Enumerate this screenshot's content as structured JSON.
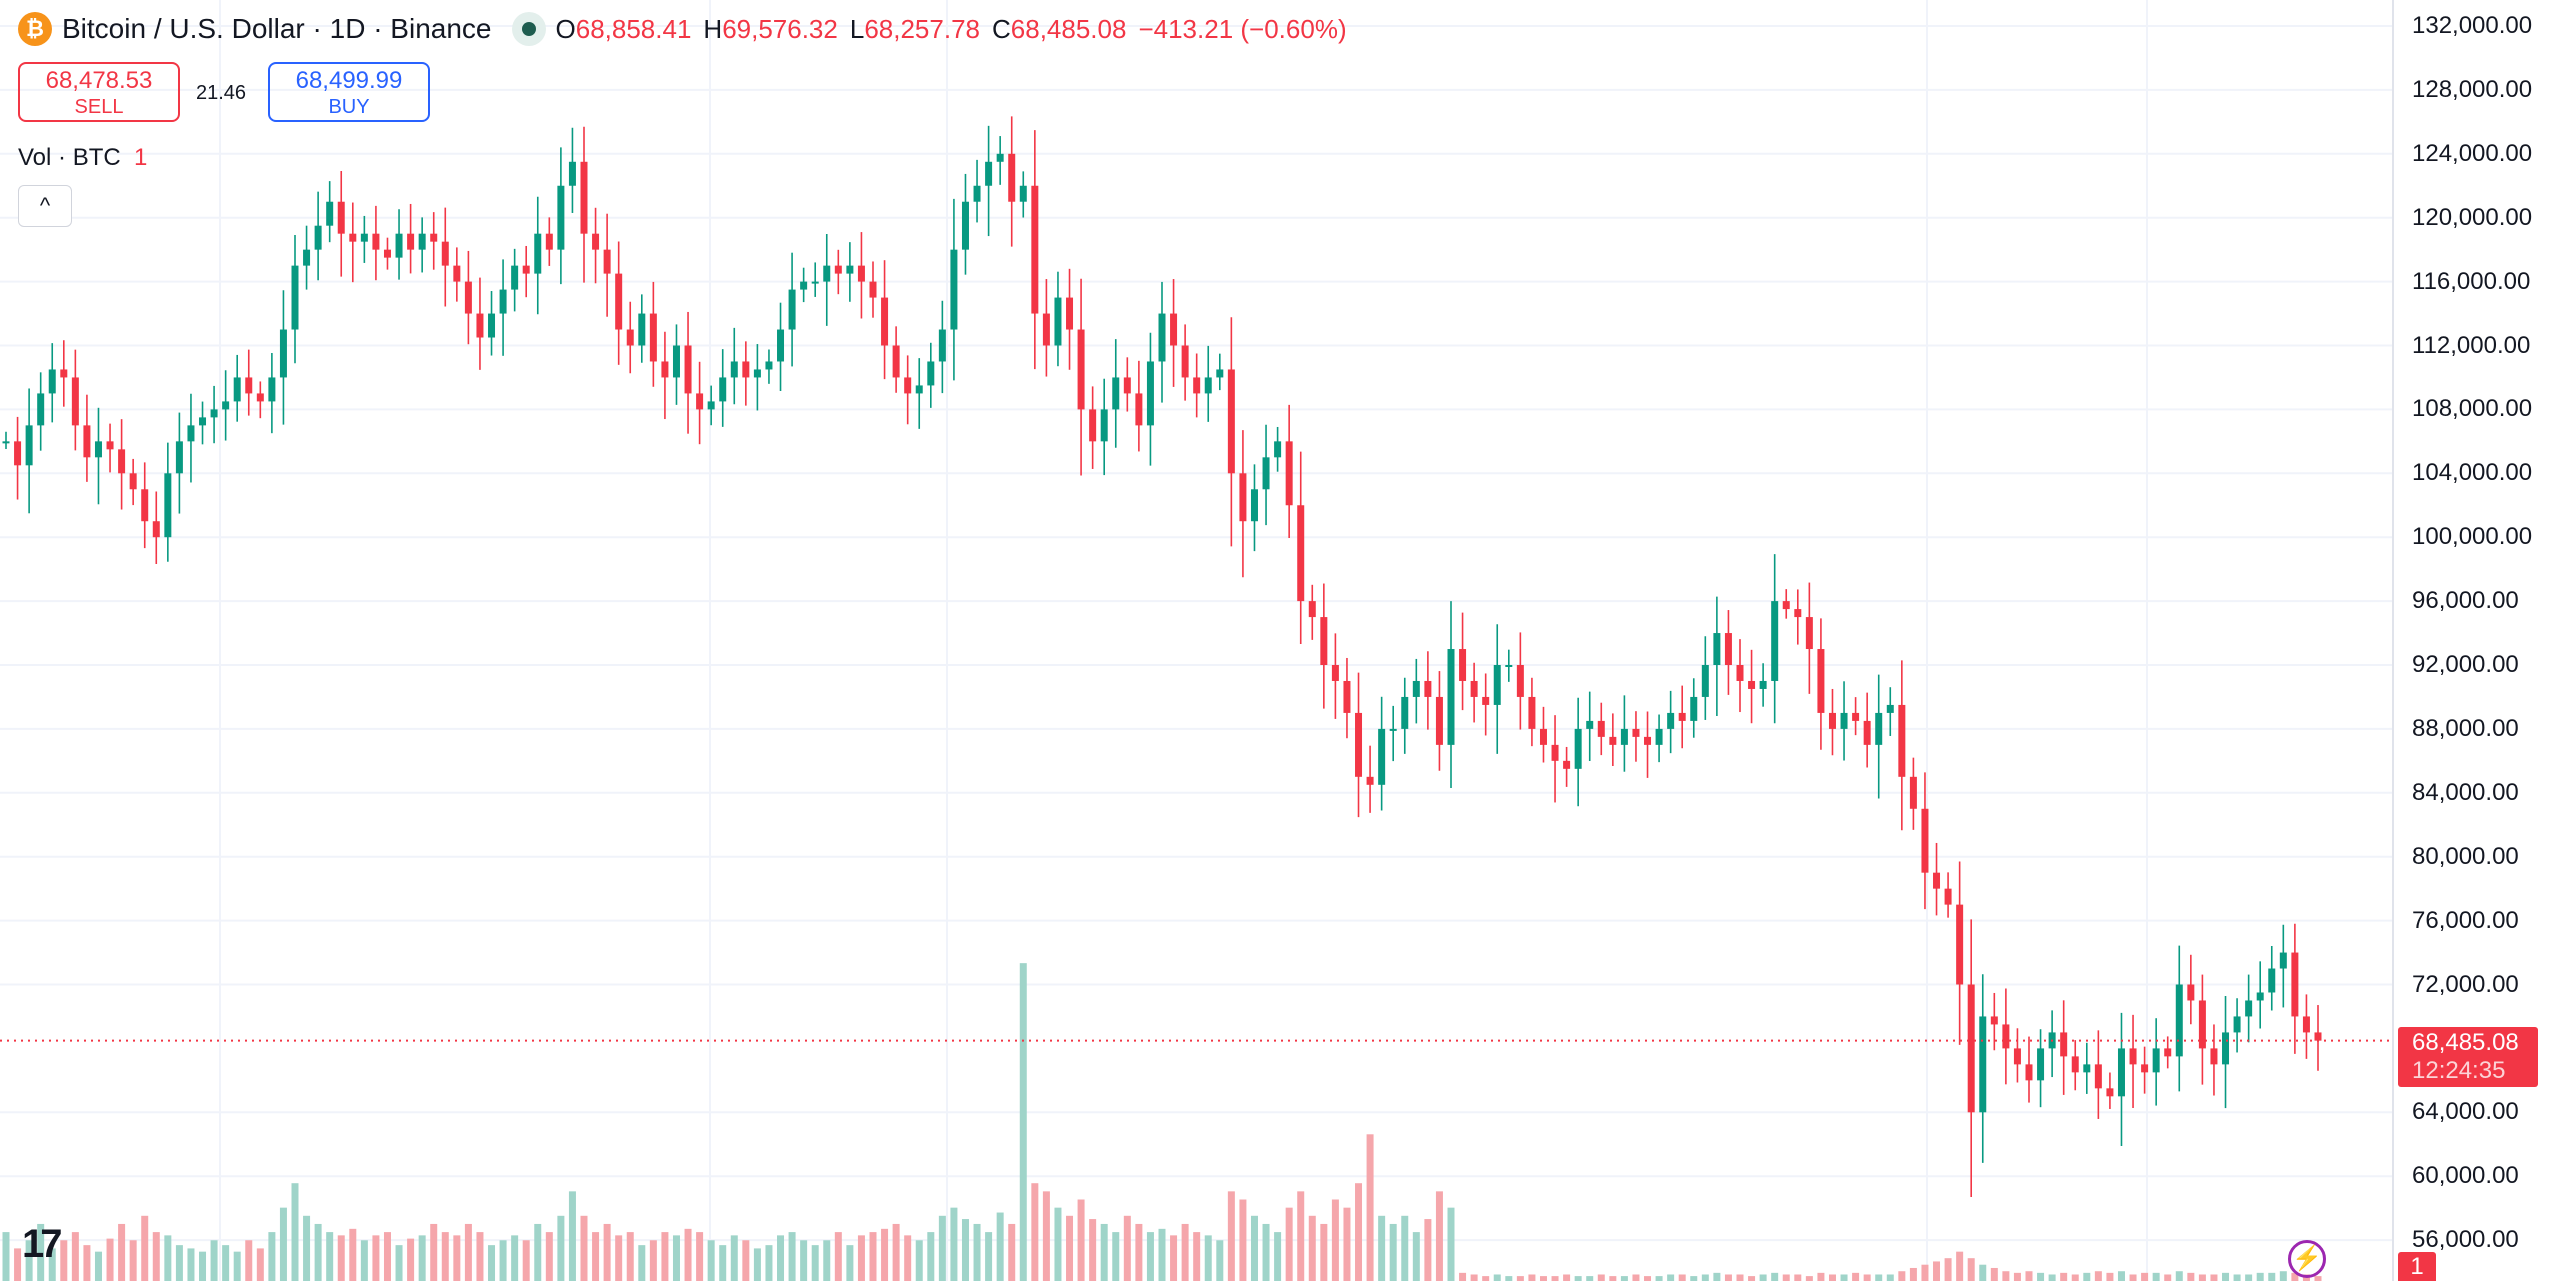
{
  "header": {
    "symbol_icon": "bitcoin-icon",
    "title": "Bitcoin / U.S. Dollar · 1D · Binance",
    "status": "market-open-dot",
    "ohlc": {
      "o_label": "O",
      "o": "68,858.41",
      "h_label": "H",
      "h": "69,576.32",
      "l_label": "L",
      "l": "68,257.78",
      "c_label": "C",
      "c": "68,485.08",
      "change": "−413.21 (−0.60%)"
    }
  },
  "trade": {
    "sell_price": "68,478.53",
    "sell_label": "SELL",
    "spread": "21.46",
    "buy_price": "68,499.99",
    "buy_label": "BUY"
  },
  "volume_legend": {
    "label": "Vol · BTC",
    "value": "1"
  },
  "collapse_label": "^",
  "price_axis": {
    "labels": [
      "132,000.00",
      "128,000.00",
      "124,000.00",
      "120,000.00",
      "116,000.00",
      "112,000.00",
      "108,000.00",
      "104,000.00",
      "100,000.00",
      "96,000.00",
      "92,000.00",
      "88,000.00",
      "84,000.00",
      "80,000.00",
      "76,000.00",
      "72,000.00",
      "64,000.00",
      "60,000.00",
      "56,000.00"
    ],
    "current_price": "68,485.08",
    "countdown": "12:24:35",
    "badge": "1"
  },
  "logo": "TV",
  "colors": {
    "up": "#089981",
    "down": "#f23645",
    "up_volume": "#9fd4c9",
    "down_volume": "#f5a6ab",
    "grid": "#f0f3fa"
  },
  "chart_data": {
    "type": "candlestick",
    "y_unit": "USD",
    "ylim": [
      54000,
      134000
    ],
    "y_ticks": [
      56000,
      60000,
      64000,
      72000,
      76000,
      80000,
      84000,
      88000,
      92000,
      96000,
      100000,
      104000,
      108000,
      112000,
      116000,
      120000,
      124000,
      128000,
      132000
    ],
    "first_open": 106000,
    "last_close": 68485.08,
    "closes_k": [
      106,
      104.5,
      107,
      109,
      110.5,
      110,
      107,
      105,
      106,
      105.5,
      104,
      103,
      101,
      100,
      104,
      106,
      107,
      107.5,
      108,
      108.5,
      110,
      109,
      108.5,
      110,
      113,
      117,
      118,
      119.5,
      121,
      119,
      118.5,
      119,
      118,
      117.5,
      119,
      118,
      119,
      118.5,
      117,
      116,
      114,
      112.5,
      114,
      115.5,
      117,
      116.5,
      119,
      118,
      122,
      123.5,
      119,
      118,
      116.5,
      113,
      112,
      114,
      111,
      110,
      112,
      109,
      108,
      108.5,
      110,
      111,
      110,
      110.5,
      111,
      113,
      115.5,
      116,
      116,
      117,
      116.5,
      117,
      116,
      115,
      112,
      110,
      109,
      109.5,
      111,
      113,
      118,
      121,
      122,
      123.5,
      124,
      121,
      122,
      114,
      112,
      115,
      113,
      108,
      106,
      108,
      110,
      109,
      107,
      111,
      114,
      112,
      110,
      109,
      110,
      110.5,
      104,
      101,
      103,
      105,
      106,
      102,
      96,
      95,
      92,
      91,
      89,
      85,
      84.5,
      88,
      88,
      90,
      91,
      90,
      87,
      93,
      91,
      90,
      89.5,
      92,
      92,
      90,
      88,
      87,
      86,
      85.5,
      88,
      88.5,
      87.5,
      87,
      88,
      87.5,
      87,
      88,
      89,
      88.5,
      90,
      92,
      94,
      92,
      91,
      90.5,
      91,
      96,
      95.5,
      95,
      93,
      89,
      88,
      89,
      88.5,
      87,
      89,
      89.5,
      85,
      83,
      79,
      78,
      77,
      72,
      64,
      70,
      69.5,
      68,
      67,
      66,
      68,
      69,
      67.5,
      66.5,
      67,
      65.5,
      65,
      68,
      67,
      66.5,
      68,
      67.5,
      72,
      71,
      68,
      67,
      69,
      70,
      71,
      71.5,
      73,
      74,
      70,
      69,
      68.485
    ],
    "volume_relative": [
      30,
      20,
      25,
      35,
      20,
      25,
      30,
      22,
      18,
      26,
      35,
      25,
      40,
      30,
      28,
      22,
      20,
      18,
      25,
      22,
      18,
      25,
      20,
      30,
      45,
      60,
      40,
      35,
      30,
      28,
      32,
      25,
      28,
      30,
      22,
      26,
      28,
      35,
      30,
      28,
      35,
      30,
      22,
      25,
      28,
      25,
      35,
      30,
      40,
      55,
      40,
      30,
      35,
      28,
      30,
      22,
      25,
      30,
      28,
      32,
      30,
      25,
      22,
      28,
      25,
      20,
      22,
      28,
      30,
      25,
      22,
      25,
      30,
      22,
      28,
      30,
      32,
      35,
      28,
      25,
      30,
      40,
      45,
      38,
      35,
      30,
      42,
      35,
      195,
      60,
      55,
      45,
      40,
      50,
      38,
      35,
      30,
      40,
      35,
      30,
      32,
      28,
      35,
      30,
      28,
      25,
      55,
      50,
      40,
      35,
      30,
      45,
      55,
      40,
      35,
      50,
      45,
      60,
      90,
      40,
      35,
      40,
      30,
      38,
      55,
      45,
      5,
      4,
      3,
      4,
      3,
      3,
      4,
      3,
      3,
      4,
      3,
      3,
      4,
      3,
      3,
      4,
      3,
      3,
      4,
      4,
      3,
      4,
      5,
      4,
      4,
      3,
      4,
      5,
      4,
      4,
      3,
      5,
      4,
      4,
      5,
      4,
      4,
      4,
      6,
      8,
      10,
      12,
      14,
      18,
      14,
      10,
      8,
      6,
      5,
      6,
      5,
      4,
      5,
      4,
      5,
      6,
      5,
      6,
      4,
      5,
      5,
      4,
      6,
      5,
      4,
      4,
      5,
      4,
      4,
      5,
      5,
      6,
      5,
      4,
      3
    ]
  }
}
